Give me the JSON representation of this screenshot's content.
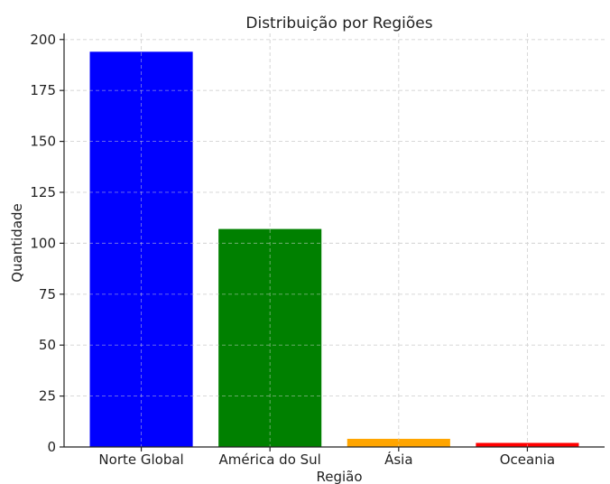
{
  "chart_data": {
    "type": "bar",
    "title": "Distribuição por Regiões",
    "xlabel": "Região",
    "ylabel": "Quantidade",
    "categories": [
      "Norte Global",
      "América do Sul",
      "Ásia",
      "Oceania"
    ],
    "values": [
      194,
      107,
      4,
      2
    ],
    "colors": [
      "#0000ff",
      "#008000",
      "#ffa500",
      "#ff0000"
    ],
    "ylim": [
      0,
      203
    ],
    "yticks": [
      0,
      25,
      50,
      75,
      100,
      125,
      150,
      175,
      200
    ],
    "grid": true
  }
}
